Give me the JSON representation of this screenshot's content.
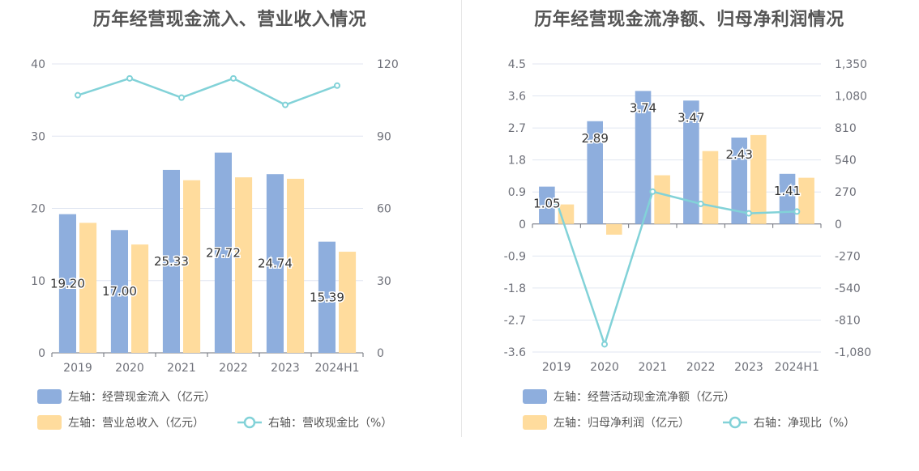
{
  "colors": {
    "bar_primary": "#8eaedd",
    "bar_secondary": "#ffdc9d",
    "line": "#82d2d8",
    "grid": "#e0e6f1",
    "axis": "#6e7079"
  },
  "chart_data": [
    {
      "type": "bar",
      "title": "历年经营现金流入、营业收入情况",
      "categories": [
        "2019",
        "2020",
        "2021",
        "2022",
        "2023",
        "2024H1"
      ],
      "left_axis": {
        "ylim": [
          0,
          40
        ],
        "ticks": [
          "0",
          "10",
          "20",
          "30",
          "40"
        ]
      },
      "right_axis": {
        "ylim": [
          0,
          120
        ],
        "ticks": [
          "0",
          "30",
          "60",
          "90",
          "120"
        ]
      },
      "grid": true,
      "legend_position": "bottom",
      "series": [
        {
          "name": "左轴：经营现金流入（亿元）",
          "kind": "bar",
          "axis": "left",
          "values": [
            19.2,
            17.0,
            25.33,
            27.72,
            24.74,
            15.39
          ],
          "labels": [
            "19.20",
            "17.00",
            "25.33",
            "27.72",
            "24.74",
            "15.39"
          ]
        },
        {
          "name": "左轴：营业总收入（亿元）",
          "kind": "bar",
          "axis": "left",
          "values": [
            18.0,
            15.0,
            23.9,
            24.3,
            24.1,
            14.0
          ]
        },
        {
          "name": "右轴：营收现金比（%）",
          "kind": "line",
          "axis": "right",
          "values": [
            107,
            114,
            106,
            114,
            103,
            111
          ]
        }
      ]
    },
    {
      "type": "bar",
      "title": "历年经营现金流净额、归母净利润情况",
      "categories": [
        "2019",
        "2020",
        "2021",
        "2022",
        "2023",
        "2024H1"
      ],
      "left_axis": {
        "ylim": [
          -3.6,
          4.5
        ],
        "ticks": [
          "-3.6",
          "-2.7",
          "-1.8",
          "-0.9",
          "0",
          "0.9",
          "1.8",
          "2.7",
          "3.6",
          "4.5"
        ]
      },
      "right_axis": {
        "ylim": [
          -1080,
          1350
        ],
        "ticks": [
          "-1,080",
          "-810",
          "-540",
          "-270",
          "0",
          "270",
          "540",
          "810",
          "1,080",
          "1,350"
        ]
      },
      "grid": true,
      "legend_position": "bottom",
      "series": [
        {
          "name": "左轴：经营活动现金流净额（亿元）",
          "kind": "bar",
          "axis": "left",
          "values": [
            1.05,
            2.89,
            3.74,
            3.47,
            2.43,
            1.41
          ],
          "labels": [
            "1.05",
            "2.89",
            "3.74",
            "3.47",
            "2.43",
            "1.41"
          ]
        },
        {
          "name": "左轴：归母净利润（亿元）",
          "kind": "bar",
          "axis": "left",
          "values": [
            0.55,
            -0.3,
            1.37,
            2.05,
            2.5,
            1.3
          ]
        },
        {
          "name": "右轴：净现比（%）",
          "kind": "line",
          "axis": "right",
          "values": [
            190,
            -1015,
            273,
            170,
            90,
            105
          ]
        }
      ]
    }
  ]
}
